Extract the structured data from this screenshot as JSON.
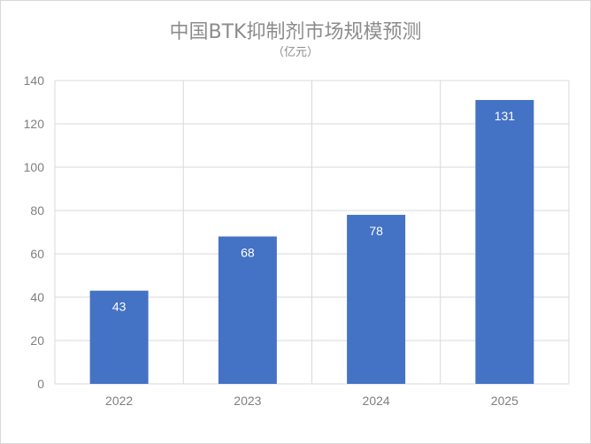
{
  "chart_data": {
    "type": "bar",
    "title": "中国BTK抑制剂市场规模预测",
    "subtitle": "（亿元）",
    "categories": [
      "2022",
      "2023",
      "2024",
      "2025"
    ],
    "values": [
      43,
      68,
      78,
      131
    ],
    "ylim": [
      0,
      140
    ],
    "yticks": [
      0,
      20,
      40,
      60,
      80,
      100,
      120,
      140
    ],
    "grid": true,
    "legend": "none",
    "bar_color": "#4472C4",
    "grid_color": "#d9d9d9"
  }
}
